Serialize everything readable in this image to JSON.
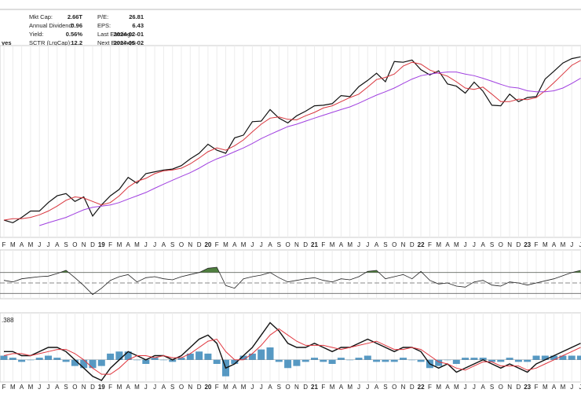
{
  "info": {
    "flag": "yes",
    "left": [
      {
        "label": "Mkt Cap:",
        "value": "2.66T"
      },
      {
        "label": "Annual Dividend:",
        "value": "0.96"
      },
      {
        "label": "Yield:",
        "value": "0.56%"
      },
      {
        "label": "SCTR (LrgCap):",
        "value": "12.2"
      }
    ],
    "right": [
      {
        "label": "P/E:",
        "value": "26.81"
      },
      {
        "label": "EPS:",
        "value": "6.43"
      },
      {
        "label": "Last Earnings:",
        "value": "2024-02-01"
      },
      {
        "label": "Next Earnings:",
        "value": "2024-05-02"
      }
    ]
  },
  "chart_data": [
    {
      "type": "line",
      "log_scale": true,
      "ylim": [
        81,
        373
      ],
      "categories": [
        "F",
        "M",
        "A",
        "M",
        "J",
        "J",
        "A",
        "S",
        "O",
        "N",
        "D",
        "19",
        "F",
        "M",
        "A",
        "M",
        "J",
        "J",
        "A",
        "S",
        "O",
        "N",
        "D",
        "20",
        "F",
        "M",
        "A",
        "M",
        "J",
        "J",
        "A",
        "S",
        "O",
        "N",
        "D",
        "21",
        "F",
        "M",
        "A",
        "M",
        "J",
        "J",
        "A",
        "S",
        "O",
        "N",
        "D",
        "22",
        "F",
        "M",
        "A",
        "M",
        "J",
        "J",
        "A",
        "S",
        "O",
        "N",
        "D",
        "23",
        "F",
        "M",
        "A",
        "M",
        "J",
        "J"
      ],
      "series": [
        {
          "color": "#111111",
          "width": 1.2,
          "values": [
            92,
            90,
            94,
            99,
            99,
            106,
            112,
            114,
            107,
            111,
            95,
            104,
            112,
            118,
            130,
            124,
            134,
            136,
            138,
            139,
            143,
            151,
            158,
            170,
            162,
            158,
            179,
            183,
            204,
            205,
            225,
            210,
            202,
            214,
            222,
            232,
            233,
            236,
            252,
            250,
            271,
            285,
            302,
            282,
            332,
            330,
            336,
            311,
            298,
            308,
            277,
            272,
            257,
            281,
            261,
            233,
            232,
            255,
            240,
            248,
            250,
            288,
            307,
            328,
            340,
            345
          ]
        },
        {
          "color": "#d9363e",
          "width": 1,
          "values": [
            92,
            93,
            93,
            94,
            96,
            99,
            103,
            108,
            111,
            110,
            107,
            104,
            106,
            112,
            120,
            126,
            129,
            134,
            137,
            138,
            140,
            145,
            152,
            160,
            165,
            162,
            168,
            176,
            188,
            200,
            210,
            212,
            208,
            207,
            214,
            220,
            228,
            232,
            240,
            248,
            255,
            270,
            287,
            292,
            300,
            320,
            330,
            325,
            310,
            302,
            295,
            282,
            268,
            265,
            270,
            255,
            240,
            240,
            245,
            244,
            248,
            262,
            280,
            300,
            322,
            335
          ]
        },
        {
          "color": "#a040e0",
          "width": 1,
          "values": [
            null,
            null,
            null,
            null,
            88,
            90,
            92,
            94,
            97,
            100,
            102,
            103,
            104,
            106,
            109,
            112,
            115,
            119,
            123,
            127,
            131,
            135,
            140,
            146,
            151,
            155,
            160,
            165,
            171,
            178,
            184,
            190,
            196,
            200,
            205,
            210,
            215,
            220,
            225,
            230,
            237,
            245,
            253,
            260,
            268,
            278,
            288,
            296,
            300,
            303,
            305,
            305,
            300,
            296,
            290,
            283,
            276,
            270,
            268,
            262,
            260,
            260,
            262,
            268,
            278,
            290
          ]
        }
      ]
    },
    {
      "type": "line",
      "ylim": [
        23,
        110
      ],
      "levels": [
        30,
        50,
        70
      ],
      "fill_above": 70,
      "fill_color": "#4f7f3f",
      "series": [
        {
          "color": "#222222",
          "width": 0.8,
          "values": [
            55,
            52,
            58,
            60,
            62,
            63,
            68,
            74,
            60,
            45,
            28,
            40,
            55,
            62,
            66,
            52,
            60,
            62,
            58,
            56,
            62,
            66,
            70,
            78,
            80,
            45,
            40,
            58,
            62,
            65,
            70,
            60,
            52,
            55,
            58,
            60,
            55,
            52,
            58,
            56,
            62,
            72,
            74,
            58,
            62,
            66,
            58,
            72,
            55,
            48,
            50,
            44,
            42,
            52,
            55,
            46,
            44,
            52,
            50,
            46,
            50,
            54,
            58,
            64,
            70,
            74
          ]
        }
      ]
    },
    {
      "type": "line",
      "ylim": [
        -5,
        11
      ],
      "annotation": ".388",
      "categories": [
        "F",
        "M",
        "A",
        "M",
        "J",
        "J",
        "A",
        "S",
        "O",
        "N",
        "D",
        "19",
        "F",
        "M",
        "A",
        "M",
        "J",
        "J",
        "A",
        "S",
        "O",
        "N",
        "D",
        "20",
        "F",
        "M",
        "A",
        "M",
        "J",
        "J",
        "A",
        "S",
        "O",
        "N",
        "D",
        "21",
        "F",
        "M",
        "A",
        "M",
        "J",
        "J",
        "A",
        "S",
        "O",
        "N",
        "D",
        "22",
        "F",
        "M",
        "A",
        "M",
        "J",
        "J",
        "A",
        "S",
        "O",
        "N",
        "D",
        "23",
        "F",
        "M",
        "A",
        "M",
        "J",
        "J"
      ],
      "series": [
        {
          "type": "bar",
          "color": "#3a87b8",
          "values": [
            1,
            0.5,
            -0.5,
            0,
            0.5,
            1,
            0.5,
            -0.5,
            -1.5,
            -2,
            -2,
            -1.5,
            1.5,
            2,
            2,
            0,
            -1,
            0.5,
            0,
            -0.5,
            0.5,
            1.5,
            2,
            1.5,
            -1,
            -4,
            -1,
            1,
            1.5,
            2.5,
            3,
            -0.5,
            -2,
            -1.5,
            -0.5,
            0.5,
            -0.5,
            -1,
            0.5,
            0,
            0.5,
            1,
            -0.5,
            -0.5,
            -0.5,
            0.5,
            0,
            -0.5,
            -2,
            -1.5,
            0,
            -1,
            0.5,
            0.5,
            0.5,
            -0.5,
            -0.5,
            0.5,
            -0.5,
            -0.5,
            1,
            1,
            1,
            1,
            1,
            1
          ]
        },
        {
          "color": "#111111",
          "width": 1.4,
          "values": [
            2,
            2,
            1,
            1,
            2,
            3,
            3,
            2,
            0,
            -2,
            -4,
            -5,
            -2,
            0,
            2,
            1,
            0,
            1,
            1,
            0,
            1,
            3,
            5,
            6,
            4,
            -2,
            -1,
            1,
            3,
            6,
            9,
            7,
            4,
            3,
            3,
            4,
            3,
            2,
            3,
            3,
            4,
            5,
            4,
            3,
            2,
            3,
            3,
            2,
            -1,
            -2,
            -1,
            -3,
            -2,
            -1,
            0,
            -1,
            -2,
            -1,
            -2,
            -3,
            -1,
            0,
            1,
            2,
            3,
            4
          ]
        },
        {
          "color": "#e0363e",
          "width": 1,
          "values": [
            1,
            1.5,
            1.5,
            1,
            1.5,
            2,
            2.5,
            2.5,
            1.5,
            0,
            -2,
            -3.5,
            -3.5,
            -2,
            0,
            1,
            1,
            0.5,
            1,
            0.5,
            0.5,
            1.5,
            3,
            4.5,
            5,
            2,
            0,
            0,
            1.5,
            3.5,
            6,
            7.5,
            6,
            4.5,
            3.5,
            3.5,
            3.5,
            3,
            2.5,
            3,
            3.5,
            4,
            4.5,
            3.5,
            2.5,
            2.5,
            3,
            2.5,
            1,
            -0.5,
            -1,
            -2,
            -2.5,
            -1.5,
            -0.5,
            -0.5,
            -1.5,
            -1.5,
            -1.5,
            -2.5,
            -2,
            -1,
            0,
            1,
            2,
            3
          ]
        }
      ]
    }
  ]
}
